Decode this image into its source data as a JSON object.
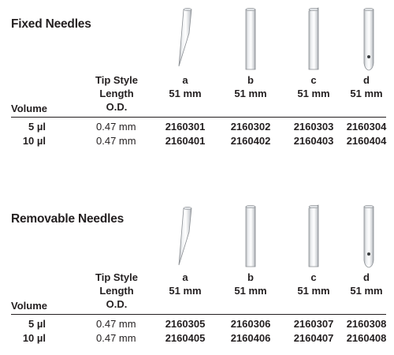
{
  "sections": [
    {
      "title": "Fixed Needles",
      "header": {
        "tip_style": "Tip Style",
        "length": "Length",
        "od": "O.D.",
        "volume": "Volume",
        "columns": [
          {
            "style": "a",
            "length": "51 mm"
          },
          {
            "style": "b",
            "length": "51 mm"
          },
          {
            "style": "c",
            "length": "51 mm"
          },
          {
            "style": "d",
            "length": "51 mm"
          }
        ]
      },
      "rows": [
        {
          "volume": "5 µl",
          "od": "0.47 mm",
          "parts": [
            "2160301",
            "2160302",
            "2160303",
            "2160304"
          ]
        },
        {
          "volume": "10 µl",
          "od": "0.47 mm",
          "parts": [
            "2160401",
            "2160402",
            "2160403",
            "2160404"
          ]
        }
      ]
    },
    {
      "title": "Removable Needles",
      "header": {
        "tip_style": "Tip Style",
        "length": "Length",
        "od": "O.D.",
        "volume": "Volume",
        "columns": [
          {
            "style": "a",
            "length": "51 mm"
          },
          {
            "style": "b",
            "length": "51 mm"
          },
          {
            "style": "c",
            "length": "51 mm"
          },
          {
            "style": "d",
            "length": "51 mm"
          }
        ]
      },
      "rows": [
        {
          "volume": "5 µl",
          "od": "0.47 mm",
          "parts": [
            "2160305",
            "2160306",
            "2160307",
            "2160308"
          ]
        },
        {
          "volume": "10 µl",
          "od": "0.47 mm",
          "parts": [
            "2160405",
            "2160406",
            "2160407",
            "2160408"
          ]
        }
      ]
    }
  ]
}
